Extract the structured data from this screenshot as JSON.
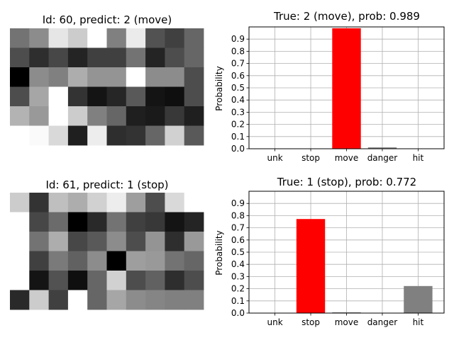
{
  "chart_data": [
    {
      "type": "heatmap",
      "title": "Id: 60, predict: 2 (move)",
      "rows": 6,
      "cols": 10,
      "colormap": "grayscale",
      "values": [
        [
          0.45,
          0.55,
          0.9,
          0.8,
          1.0,
          0.5,
          0.92,
          0.32,
          0.25,
          0.4
        ],
        [
          0.3,
          0.18,
          0.28,
          0.14,
          0.25,
          0.25,
          0.45,
          0.14,
          0.3,
          0.4
        ],
        [
          0.0,
          0.55,
          0.5,
          0.68,
          0.58,
          0.58,
          1.0,
          0.55,
          0.55,
          0.3
        ],
        [
          0.3,
          0.65,
          1.0,
          0.2,
          0.08,
          0.15,
          0.35,
          0.08,
          0.06,
          0.3
        ],
        [
          0.7,
          0.6,
          1.0,
          0.8,
          0.5,
          0.4,
          0.12,
          0.1,
          0.22,
          0.12
        ],
        [
          1.0,
          0.98,
          0.85,
          0.12,
          0.93,
          0.18,
          0.2,
          0.4,
          0.82,
          0.35
        ]
      ]
    },
    {
      "type": "bar",
      "title": "True: 2 (move), prob: 0.989",
      "categories": [
        "unk",
        "stop",
        "move",
        "danger",
        "hit"
      ],
      "values": [
        0.0,
        0.0,
        0.989,
        0.011,
        0.0
      ],
      "bar_colors": [
        "#808080",
        "#808080",
        "#ff0000",
        "#808080",
        "#808080"
      ],
      "ylabel": "Probability",
      "ylim": [
        0,
        1
      ],
      "yticks": [
        "0.0",
        "0.1",
        "0.2",
        "0.3",
        "0.4",
        "0.5",
        "0.6",
        "0.7",
        "0.8",
        "0.9"
      ],
      "grid": true
    },
    {
      "type": "heatmap",
      "title": "Id: 61, predict: 1 (stop)",
      "rows": 6,
      "cols": 10,
      "colormap": "grayscale",
      "values": [
        [
          0.8,
          0.2,
          0.75,
          0.68,
          0.82,
          0.93,
          0.62,
          0.3,
          0.85,
          1.0
        ],
        [
          1.0,
          0.28,
          0.42,
          0.0,
          0.16,
          0.45,
          0.25,
          0.22,
          0.08,
          0.14
        ],
        [
          1.0,
          0.45,
          0.68,
          0.28,
          0.35,
          0.55,
          0.3,
          0.58,
          0.18,
          0.6
        ],
        [
          1.0,
          0.25,
          0.48,
          0.38,
          0.55,
          0.0,
          0.62,
          0.6,
          0.45,
          0.4
        ],
        [
          1.0,
          0.08,
          0.32,
          0.06,
          0.4,
          0.82,
          0.3,
          0.38,
          0.18,
          0.3
        ],
        [
          0.16,
          0.8,
          0.25,
          1.0,
          0.4,
          0.65,
          0.55,
          0.52,
          0.5,
          0.5
        ]
      ]
    },
    {
      "type": "bar",
      "title": "True: 1 (stop), prob: 0.772",
      "categories": [
        "unk",
        "stop",
        "move",
        "danger",
        "hit"
      ],
      "values": [
        0.0,
        0.772,
        0.006,
        0.0,
        0.222
      ],
      "bar_colors": [
        "#808080",
        "#ff0000",
        "#808080",
        "#808080",
        "#808080"
      ],
      "ylabel": "Probability",
      "ylim": [
        0,
        1
      ],
      "yticks": [
        "0.0",
        "0.1",
        "0.2",
        "0.3",
        "0.4",
        "0.5",
        "0.6",
        "0.7",
        "0.8",
        "0.9"
      ],
      "grid": true
    }
  ]
}
